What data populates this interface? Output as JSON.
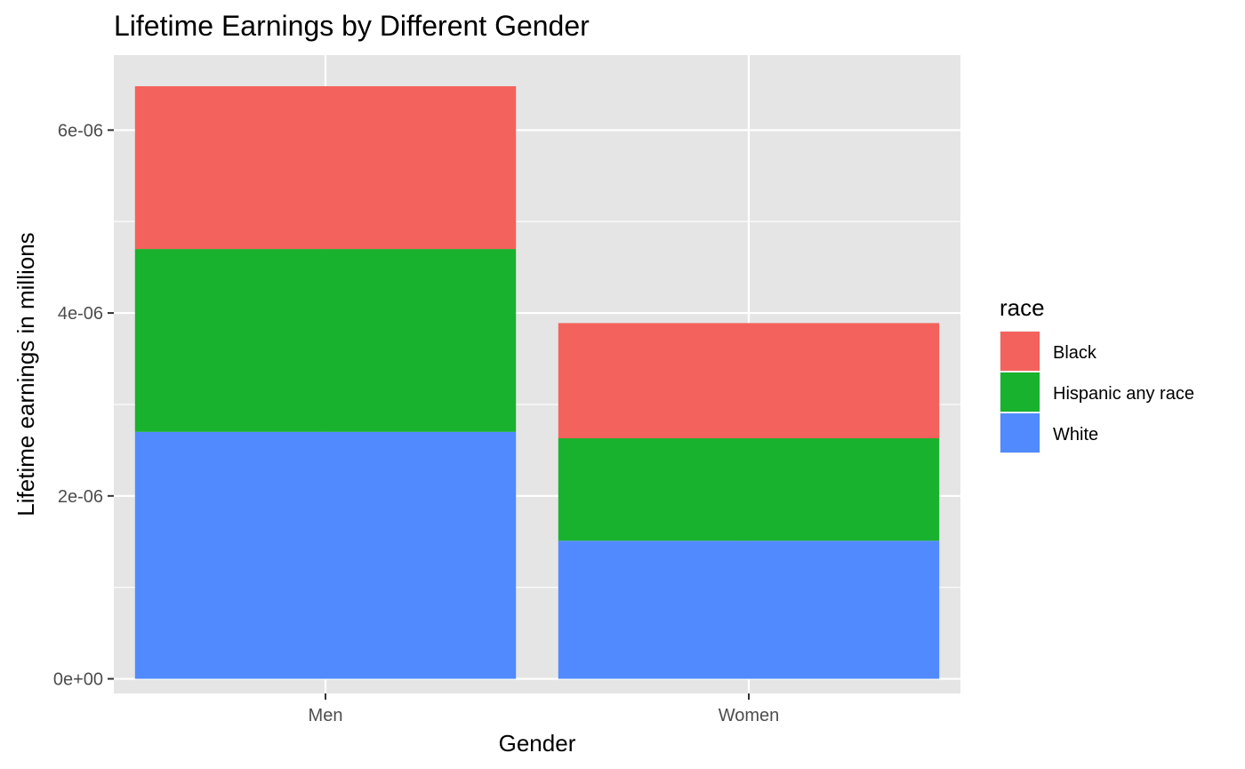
{
  "chart_data": {
    "type": "bar",
    "stacked": true,
    "title": "Lifetime Earnings by Different Gender",
    "xlabel": "Gender",
    "ylabel": "Lifetime earnings in millions",
    "categories": [
      "Men",
      "Women"
    ],
    "series": [
      {
        "name": "White",
        "color": "#518AFF",
        "values": [
          2.7e-06,
          1.51e-06
        ]
      },
      {
        "name": "Hispanic any race",
        "color": "#19B22E",
        "values": [
          2e-06,
          1.12e-06
        ]
      },
      {
        "name": "Black",
        "color": "#F4625D",
        "values": [
          1.78e-06,
          1.26e-06
        ]
      }
    ],
    "ylim": [
      -1.6e-07,
      6.82e-06
    ],
    "yticks": [
      0,
      2e-06,
      4e-06,
      6e-06
    ],
    "ytick_labels": [
      "0e+00",
      "2e-06",
      "4e-06",
      "6e-06"
    ],
    "grid": true,
    "panel_background": "#E5E5E5",
    "legend": {
      "title": "race",
      "placement": "right",
      "entries": [
        {
          "label": "Black",
          "color": "#F4625D"
        },
        {
          "label": "Hispanic any race",
          "color": "#19B22E"
        },
        {
          "label": "White",
          "color": "#518AFF"
        }
      ]
    }
  }
}
